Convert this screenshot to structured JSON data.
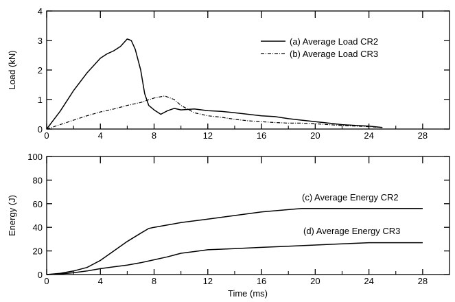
{
  "chart_data": [
    {
      "type": "line",
      "ylabel": "Load (kN)",
      "xlim": [
        0,
        30
      ],
      "ylim": [
        0,
        4
      ],
      "xticks": [
        0,
        4,
        8,
        12,
        16,
        20,
        24,
        28
      ],
      "yticks": [
        0,
        1,
        2,
        3,
        4
      ],
      "xtick_labels": [
        "0",
        "4",
        "8",
        "12",
        "16",
        "20",
        "24",
        "28"
      ],
      "ytick_labels": [
        "0",
        "1",
        "2",
        "3",
        "4"
      ],
      "legend_position": "top-right",
      "grid": false,
      "series": [
        {
          "name": "(a) Average Load CR2",
          "style": "solid",
          "x": [
            0,
            0.5,
            1,
            2,
            3,
            4,
            4.5,
            5,
            5.5,
            6,
            6.3,
            6.6,
            7,
            7.3,
            7.6,
            8,
            8.5,
            9,
            9.5,
            10,
            11,
            12,
            13,
            14,
            15,
            16,
            17,
            18,
            19,
            20,
            21,
            22,
            23,
            24,
            25
          ],
          "y": [
            0,
            0.3,
            0.6,
            1.3,
            1.9,
            2.4,
            2.55,
            2.65,
            2.8,
            3.05,
            3.0,
            2.7,
            2.0,
            1.2,
            0.8,
            0.65,
            0.5,
            0.62,
            0.7,
            0.65,
            0.68,
            0.62,
            0.6,
            0.55,
            0.5,
            0.45,
            0.42,
            0.35,
            0.3,
            0.25,
            0.2,
            0.15,
            0.12,
            0.1,
            0.05
          ]
        },
        {
          "name": "(b) Average Load CR3",
          "style": "dashed",
          "x": [
            0,
            1,
            2,
            3,
            4,
            5,
            6,
            7,
            8,
            8.8,
            9.5,
            10,
            11,
            12,
            13,
            14,
            15,
            16,
            17,
            18,
            19,
            20,
            21,
            22,
            23,
            24,
            25
          ],
          "y": [
            0,
            0.15,
            0.3,
            0.45,
            0.58,
            0.68,
            0.8,
            0.9,
            1.05,
            1.12,
            1.0,
            0.8,
            0.55,
            0.45,
            0.4,
            0.33,
            0.28,
            0.25,
            0.22,
            0.2,
            0.2,
            0.18,
            0.15,
            0.12,
            0.1,
            0.08,
            0.05
          ]
        }
      ]
    },
    {
      "type": "line",
      "xlabel": "Time (ms)",
      "ylabel": "Energy (J)",
      "xlim": [
        0,
        30
      ],
      "ylim": [
        0,
        100
      ],
      "xticks": [
        0,
        4,
        8,
        12,
        16,
        20,
        24,
        28
      ],
      "yticks": [
        0,
        20,
        40,
        60,
        80,
        100
      ],
      "xtick_labels": [
        "0",
        "4",
        "8",
        "12",
        "16",
        "20",
        "24",
        "28"
      ],
      "ytick_labels": [
        "0",
        "20",
        "40",
        "60",
        "80",
        "100"
      ],
      "grid": false,
      "series": [
        {
          "name": "(c) Average Energy CR2",
          "style": "solid",
          "x": [
            0,
            1,
            2,
            3,
            4,
            5,
            6,
            7,
            7.6,
            8,
            9,
            10,
            12,
            14,
            16,
            18,
            19,
            20,
            22,
            24,
            26,
            28
          ],
          "y": [
            0,
            1,
            3,
            6,
            12,
            20,
            28,
            35,
            39,
            40,
            42,
            44,
            47,
            50,
            53,
            55,
            56,
            56,
            56,
            56,
            56,
            56
          ]
        },
        {
          "name": "(d) Average Energy CR3",
          "style": "solid",
          "x": [
            0,
            1,
            2,
            3,
            4,
            5,
            6,
            7,
            8,
            9,
            10,
            11,
            12,
            14,
            16,
            18,
            20,
            22,
            24,
            26,
            28
          ],
          "y": [
            0,
            0.5,
            1.5,
            3,
            5,
            6.5,
            8,
            10,
            12.5,
            15,
            18,
            19.5,
            21,
            22,
            23,
            24,
            25,
            26,
            27,
            27,
            27
          ]
        }
      ]
    }
  ]
}
